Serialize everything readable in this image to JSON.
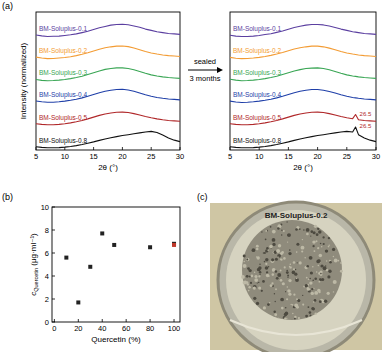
{
  "chart_data": [
    {
      "type": "line",
      "xlabel": "2θ (°)",
      "ylabel": "Intensity (normalized)",
      "x": [
        5,
        6,
        7,
        8,
        9,
        10,
        11,
        12,
        13,
        14,
        15,
        16,
        17,
        18,
        19,
        20,
        21,
        22,
        23,
        24,
        25,
        26,
        27,
        28,
        29,
        30
      ],
      "xlim": [
        5,
        30
      ],
      "xticks": [
        5,
        10,
        15,
        20,
        25,
        30
      ],
      "ylim": [
        0,
        6.3
      ],
      "yticks": [],
      "tick_labels": "x",
      "grid": false,
      "series": [
        {
          "name": "BM-Soluplus-0.1",
          "color": "#5b3fa0",
          "values": [
            5.25,
            5.21,
            5.18,
            5.19,
            5.2,
            5.23,
            5.26,
            5.3,
            5.36,
            5.42,
            5.5,
            5.58,
            5.64,
            5.7,
            5.73,
            5.74,
            5.72,
            5.66,
            5.6,
            5.52,
            5.46,
            5.4,
            5.36,
            5.32,
            5.3,
            5.28
          ]
        },
        {
          "name": "BM-Soluplus-0.2",
          "color": "#f39c34",
          "values": [
            4.24,
            4.2,
            4.17,
            4.18,
            4.2,
            4.22,
            4.26,
            4.31,
            4.37,
            4.44,
            4.52,
            4.6,
            4.67,
            4.71,
            4.74,
            4.75,
            4.72,
            4.66,
            4.58,
            4.5,
            4.43,
            4.38,
            4.34,
            4.31,
            4.29,
            4.27
          ]
        },
        {
          "name": "BM-Soluplus-0.3",
          "color": "#3aa655",
          "values": [
            3.22,
            3.18,
            3.16,
            3.17,
            3.19,
            3.22,
            3.26,
            3.31,
            3.37,
            3.45,
            3.53,
            3.61,
            3.68,
            3.72,
            3.75,
            3.75,
            3.72,
            3.66,
            3.58,
            3.5,
            3.43,
            3.38,
            3.34,
            3.31,
            3.29,
            3.27
          ]
        },
        {
          "name": "BM-Soluplus-0.4",
          "color": "#1f3fa8",
          "values": [
            2.24,
            2.2,
            2.18,
            2.18,
            2.2,
            2.23,
            2.27,
            2.32,
            2.38,
            2.45,
            2.53,
            2.61,
            2.68,
            2.73,
            2.76,
            2.77,
            2.74,
            2.68,
            2.6,
            2.52,
            2.45,
            2.4,
            2.36,
            2.33,
            2.31,
            2.29
          ]
        },
        {
          "name": "BM-Soluplus-0.5",
          "color": "#b0282a",
          "values": [
            1.2,
            1.17,
            1.15,
            1.15,
            1.17,
            1.2,
            1.24,
            1.29,
            1.35,
            1.42,
            1.5,
            1.58,
            1.64,
            1.69,
            1.72,
            1.73,
            1.71,
            1.66,
            1.6,
            1.53,
            1.47,
            1.42,
            1.38,
            1.35,
            1.33,
            1.31
          ]
        },
        {
          "name": "BM-Soluplus-0.8",
          "color": "#111111",
          "values": [
            0.15,
            0.12,
            0.1,
            0.1,
            0.11,
            0.13,
            0.16,
            0.2,
            0.25,
            0.31,
            0.37,
            0.44,
            0.5,
            0.56,
            0.61,
            0.66,
            0.7,
            0.74,
            0.78,
            0.82,
            0.85,
            0.8,
            0.68,
            0.55,
            0.45,
            0.38
          ]
        }
      ]
    },
    {
      "type": "line",
      "xlabel": "2θ (°)",
      "x": [
        5,
        6,
        7,
        8,
        9,
        10,
        11,
        12,
        13,
        14,
        15,
        16,
        17,
        18,
        19,
        20,
        21,
        22,
        23,
        24,
        25,
        26,
        26.5,
        27,
        28,
        29,
        30
      ],
      "xlim": [
        5,
        30
      ],
      "xticks": [
        5,
        10,
        15,
        20,
        25,
        30
      ],
      "ylim": [
        0,
        6.3
      ],
      "yticks": [],
      "tick_labels": "x",
      "grid": false,
      "series": [
        {
          "name": "BM-Soluplus-0.1",
          "color": "#5b3fa0",
          "values": [
            5.24,
            5.2,
            5.18,
            5.18,
            5.2,
            5.23,
            5.27,
            5.31,
            5.37,
            5.43,
            5.51,
            5.59,
            5.65,
            5.7,
            5.73,
            5.73,
            5.71,
            5.66,
            5.59,
            5.52,
            5.46,
            5.4,
            5.38,
            5.36,
            5.32,
            5.3,
            5.28
          ]
        },
        {
          "name": "BM-Soluplus-0.2",
          "color": "#f39c34",
          "values": [
            4.23,
            4.19,
            4.17,
            4.18,
            4.2,
            4.23,
            4.27,
            4.32,
            4.38,
            4.45,
            4.53,
            4.61,
            4.67,
            4.71,
            4.74,
            4.74,
            4.71,
            4.65,
            4.58,
            4.5,
            4.43,
            4.38,
            4.36,
            4.34,
            4.31,
            4.29,
            4.27
          ]
        },
        {
          "name": "BM-Soluplus-0.3",
          "color": "#3aa655",
          "values": [
            3.23,
            3.19,
            3.16,
            3.17,
            3.19,
            3.22,
            3.26,
            3.31,
            3.37,
            3.45,
            3.53,
            3.61,
            3.67,
            3.72,
            3.74,
            3.75,
            3.72,
            3.66,
            3.58,
            3.5,
            3.43,
            3.38,
            3.36,
            3.34,
            3.31,
            3.29,
            3.27
          ]
        },
        {
          "name": "BM-Soluplus-0.4",
          "color": "#1f3fa8",
          "values": [
            2.23,
            2.19,
            2.17,
            2.18,
            2.2,
            2.23,
            2.27,
            2.32,
            2.38,
            2.45,
            2.53,
            2.61,
            2.68,
            2.73,
            2.76,
            2.76,
            2.73,
            2.67,
            2.6,
            2.52,
            2.45,
            2.4,
            2.38,
            2.36,
            2.33,
            2.31,
            2.29
          ]
        },
        {
          "name": "BM-Soluplus-0.5",
          "color": "#b0282a",
          "values": [
            1.2,
            1.17,
            1.15,
            1.15,
            1.17,
            1.2,
            1.24,
            1.29,
            1.35,
            1.42,
            1.5,
            1.58,
            1.64,
            1.69,
            1.72,
            1.73,
            1.71,
            1.66,
            1.6,
            1.53,
            1.47,
            1.43,
            1.62,
            1.38,
            1.35,
            1.33,
            1.31
          ]
        },
        {
          "name": "BM-Soluplus-0.8",
          "color": "#111111",
          "values": [
            0.15,
            0.12,
            0.1,
            0.1,
            0.11,
            0.13,
            0.16,
            0.2,
            0.25,
            0.31,
            0.37,
            0.44,
            0.5,
            0.56,
            0.61,
            0.66,
            0.7,
            0.74,
            0.78,
            0.82,
            0.85,
            0.82,
            1.05,
            0.7,
            0.55,
            0.45,
            0.38
          ]
        }
      ],
      "annotations": [
        {
          "text": "26.5",
          "x": 26.5,
          "y": 1.62
        },
        {
          "text": "26.5",
          "x": 26.5,
          "y": 1.05
        }
      ]
    },
    {
      "type": "scatter",
      "xlabel": "Quercetin (%)",
      "ylabel": {
        "base": "c",
        "sub": "Quercetin",
        "unit": " (μg·ml⁻¹)"
      },
      "xlim": [
        -2,
        105
      ],
      "xticks": [
        0,
        20,
        40,
        60,
        80,
        100
      ],
      "ylim": [
        0,
        10
      ],
      "yticks": [
        0,
        2,
        4,
        6,
        8,
        10
      ],
      "grid": false,
      "series": [
        {
          "color": "#222222",
          "marker": "square",
          "x": [
            10,
            20,
            30,
            40,
            50,
            80,
            100
          ],
          "values": [
            5.6,
            1.7,
            4.8,
            7.7,
            6.7,
            6.5,
            6.8
          ]
        },
        {
          "color": "#c0392b",
          "marker": "square",
          "x": [
            100
          ],
          "values": [
            6.7
          ]
        }
      ]
    }
  ],
  "panel_labels": [
    "(a)",
    "(b)",
    "(c)"
  ],
  "arrow": {
    "above": "sealed",
    "below": "3 months"
  },
  "photo": {
    "label": "BM-Soluplus-0.2"
  }
}
